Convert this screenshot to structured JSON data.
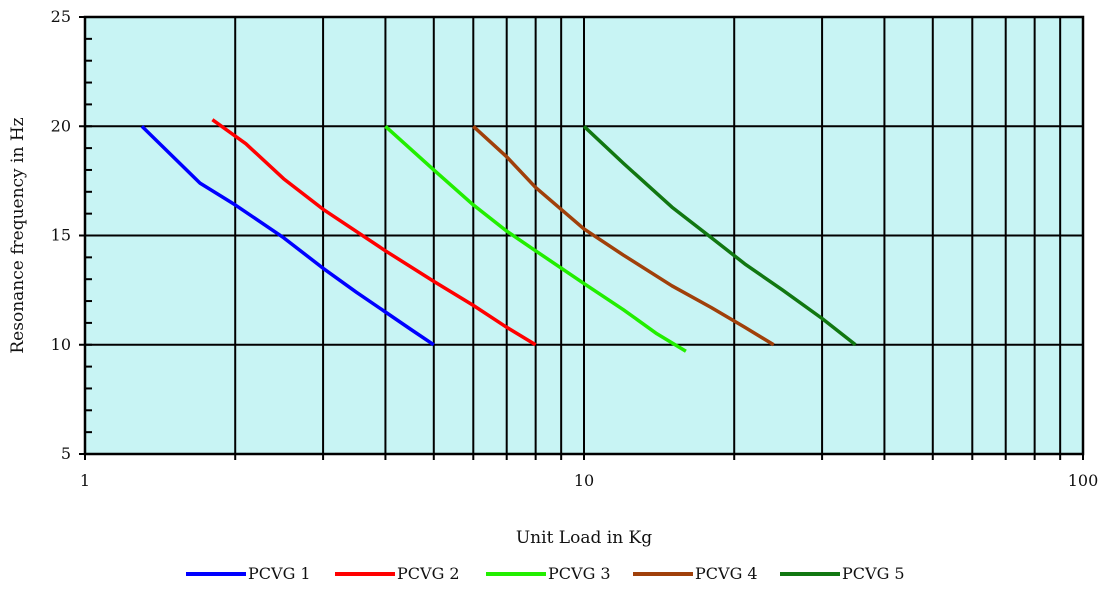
{
  "chart_data": {
    "type": "line",
    "xlabel": "Unit Load in Kg",
    "ylabel": "Resonance frequency in Hz",
    "x_scale": "log",
    "xlim": [
      1,
      100
    ],
    "ylim": [
      5,
      25
    ],
    "x_tick_labels": [
      "1",
      "10",
      "100"
    ],
    "y_ticks": [
      5,
      10,
      15,
      20,
      25
    ],
    "y_tick_labels": [
      "5",
      "10",
      "15",
      "20",
      "25"
    ],
    "grid": true,
    "plot_background": "#c8f4f4",
    "legend_position": "bottom",
    "series": [
      {
        "name": "PCVG 1",
        "color": "#0000ff",
        "points": [
          [
            1.3,
            20
          ],
          [
            1.7,
            17.4
          ],
          [
            2,
            16.4
          ],
          [
            2.5,
            14.9
          ],
          [
            3,
            13.5
          ],
          [
            3.5,
            12.4
          ],
          [
            4,
            11.5
          ],
          [
            4.5,
            10.7
          ],
          [
            5,
            10
          ]
        ]
      },
      {
        "name": "PCVG 2",
        "color": "#ff0000",
        "points": [
          [
            1.8,
            20.3
          ],
          [
            2.1,
            19.2
          ],
          [
            2.5,
            17.6
          ],
          [
            3,
            16.2
          ],
          [
            4,
            14.3
          ],
          [
            5,
            12.9
          ],
          [
            6,
            11.8
          ],
          [
            7,
            10.8
          ],
          [
            8,
            10
          ]
        ]
      },
      {
        "name": "PCVG 3",
        "color": "#22ee00",
        "points": [
          [
            4,
            20
          ],
          [
            5,
            18
          ],
          [
            6,
            16.4
          ],
          [
            7,
            15.2
          ],
          [
            8,
            14.3
          ],
          [
            10,
            12.8
          ],
          [
            12,
            11.6
          ],
          [
            14,
            10.5
          ],
          [
            16,
            9.7
          ]
        ]
      },
      {
        "name": "PCVG 4",
        "color": "#a0400a",
        "points": [
          [
            6,
            20
          ],
          [
            7,
            18.6
          ],
          [
            8,
            17.2
          ],
          [
            10,
            15.3
          ],
          [
            12,
            14.1
          ],
          [
            15,
            12.7
          ],
          [
            18,
            11.7
          ],
          [
            21,
            10.8
          ],
          [
            24,
            10
          ]
        ]
      },
      {
        "name": "PCVG 5",
        "color": "#117711",
        "points": [
          [
            10,
            20
          ],
          [
            12,
            18.3
          ],
          [
            15,
            16.3
          ],
          [
            18,
            14.9
          ],
          [
            21,
            13.7
          ],
          [
            25,
            12.5
          ],
          [
            30,
            11.2
          ],
          [
            35,
            10
          ]
        ]
      }
    ]
  }
}
